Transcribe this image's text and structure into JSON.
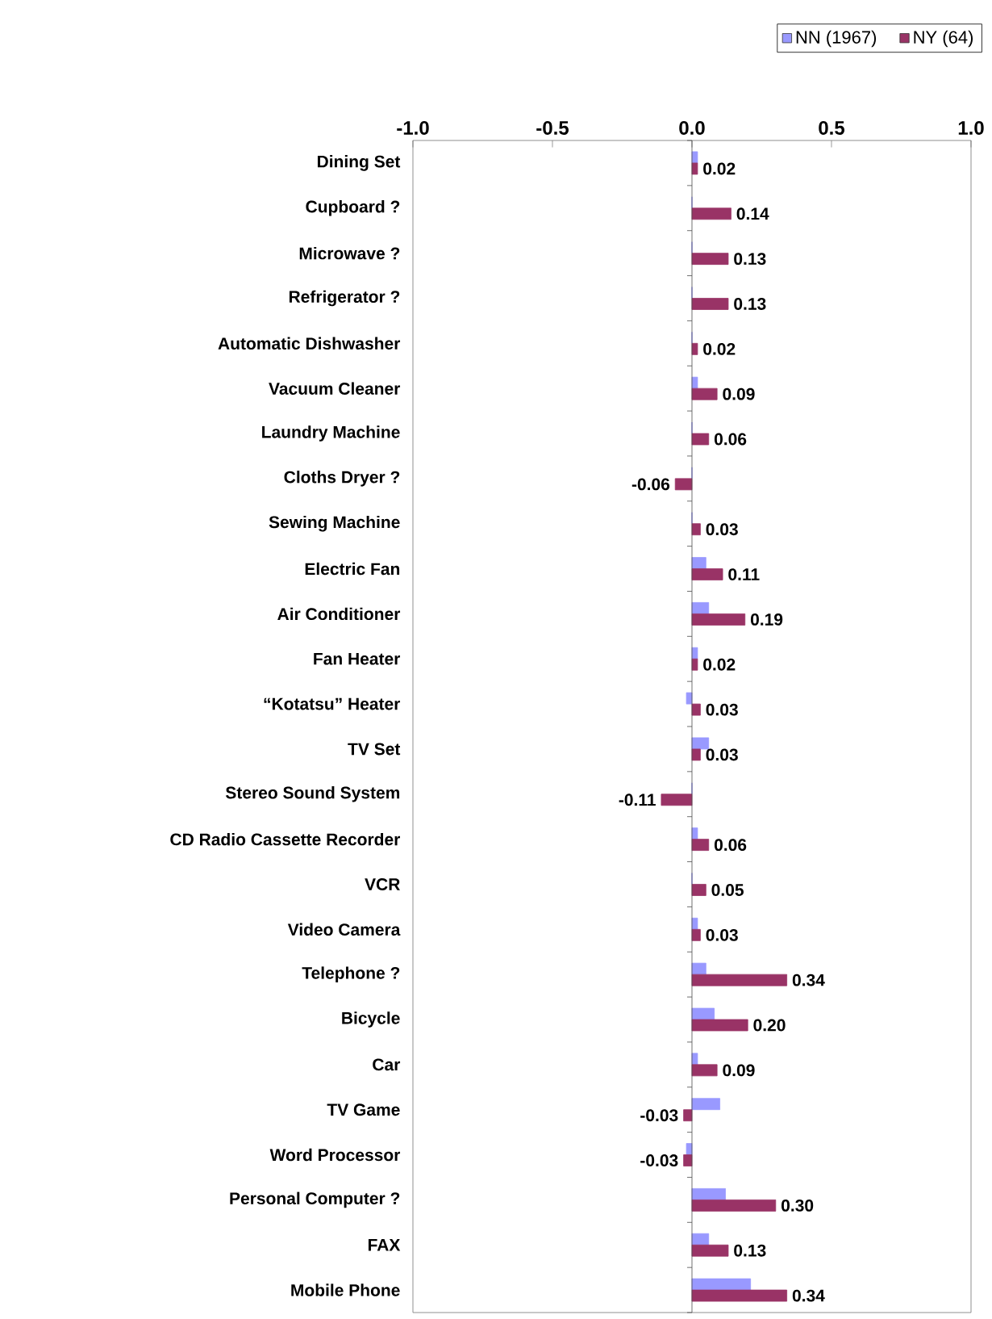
{
  "chart_data": {
    "type": "bar",
    "orientation": "horizontal",
    "categories": [
      "Dining Set",
      "Cupboard ?",
      "Microwave ?",
      "Refrigerator ?",
      "Automatic Dishwasher",
      "Vacuum Cleaner",
      "Laundry Machine",
      "Cloths Dryer ?",
      "Sewing Machine",
      "Electric Fan",
      "Air Conditioner",
      "Fan Heater",
      "“Kotatsu” Heater",
      "TV Set",
      "Stereo Sound System",
      "CD Radio Cassette Recorder",
      "VCR",
      "Video Camera",
      "Telephone ?",
      "Bicycle",
      "Car",
      "TV Game",
      "Word Processor",
      "Personal Computer ?",
      "FAX",
      "Mobile Phone"
    ],
    "series": [
      {
        "name": "NN (1967)",
        "color": "#9999ff",
        "values": [
          0.02,
          0.0,
          0.0,
          0.0,
          0.0,
          0.02,
          0.0,
          0.0,
          0.0,
          0.05,
          0.06,
          0.02,
          -0.02,
          0.06,
          0.0,
          0.02,
          0.0,
          0.02,
          0.05,
          0.08,
          0.02,
          0.1,
          -0.02,
          0.12,
          0.06,
          0.21
        ]
      },
      {
        "name": "NY (64)",
        "color": "#993366",
        "values": [
          0.02,
          0.14,
          0.13,
          0.13,
          0.02,
          0.09,
          0.06,
          -0.06,
          0.03,
          0.11,
          0.19,
          0.02,
          0.03,
          0.03,
          -0.11,
          0.06,
          0.05,
          0.03,
          0.34,
          0.2,
          0.09,
          -0.03,
          -0.03,
          0.3,
          0.13,
          0.34
        ],
        "value_labels": [
          "0.02",
          "0.14",
          "0.13",
          "0.13",
          "0.02",
          "0.09",
          "0.06",
          "-0.06",
          "0.03",
          "0.11",
          "0.19",
          "0.02",
          "0.03",
          "0.03",
          "-0.11",
          "0.06",
          "0.05",
          "0.03",
          "0.34",
          "0.20",
          "0.09",
          "-0.03",
          "-0.03",
          "0.30",
          "0.13",
          "0.34"
        ]
      }
    ],
    "xlim": [
      -1,
      1
    ],
    "xticks": [
      {
        "value": -1,
        "label": "-1.0"
      },
      {
        "value": -0.5,
        "label": "-0.5"
      },
      {
        "value": 0,
        "label": "0.0"
      },
      {
        "value": 0.5,
        "label": "0.5"
      },
      {
        "value": 1,
        "label": "1.0"
      }
    ],
    "grid": false,
    "ref_lines": [
      {
        "axis": "x",
        "value": 0
      }
    ],
    "legend": "top right"
  }
}
